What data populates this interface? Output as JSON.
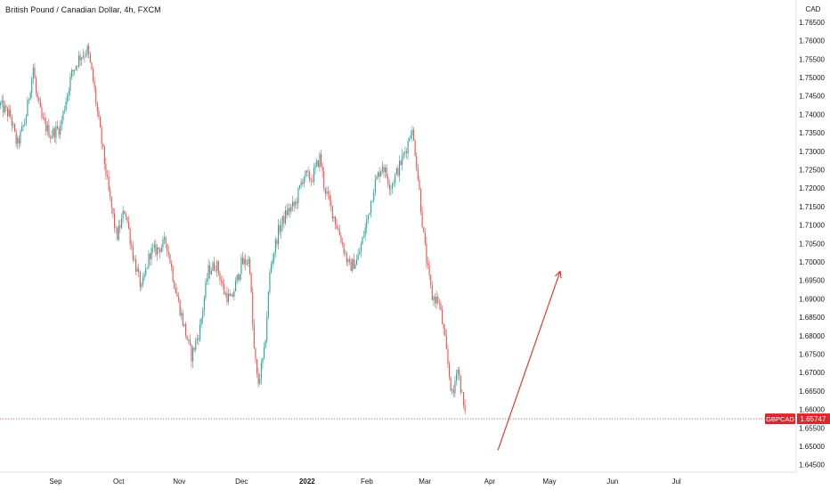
{
  "header": {
    "title": "British Pound / Canadian Dollar, 4h, FXCM"
  },
  "chart_data": {
    "type": "candlestick",
    "symbol": "GBPCAD",
    "currency": "CAD",
    "last_price": "1.65747",
    "ylim": [
      1.643,
      1.771
    ],
    "y_ticks": [
      "1.76500",
      "1.76000",
      "1.75500",
      "1.75000",
      "1.74500",
      "1.74000",
      "1.73500",
      "1.73000",
      "1.72500",
      "1.72000",
      "1.71500",
      "1.71000",
      "1.70500",
      "1.70000",
      "1.69500",
      "1.69000",
      "1.68500",
      "1.68000",
      "1.67500",
      "1.67000",
      "1.66500",
      "1.66000",
      "1.65500",
      "1.65000",
      "1.64500"
    ],
    "y_tick_values": [
      1.765,
      1.76,
      1.755,
      1.75,
      1.745,
      1.74,
      1.735,
      1.73,
      1.725,
      1.72,
      1.715,
      1.71,
      1.705,
      1.7,
      1.695,
      1.69,
      1.685,
      1.68,
      1.675,
      1.67,
      1.665,
      1.66,
      1.655,
      1.65,
      1.645
    ],
    "x_labels": [
      "Sep",
      "Oct",
      "Nov",
      "Dec",
      "2022",
      "Feb",
      "Mar",
      "Apr",
      "May",
      "Jun",
      "Jul"
    ],
    "x_label_positions": [
      0.067,
      0.143,
      0.216,
      0.291,
      0.37,
      0.442,
      0.512,
      0.59,
      0.662,
      0.738,
      0.815
    ],
    "x_label_bold": [
      false,
      false,
      false,
      false,
      true,
      false,
      false,
      false,
      false,
      false,
      false
    ],
    "price_path": [
      [
        0.0,
        1.7425
      ],
      [
        0.012,
        1.7395
      ],
      [
        0.02,
        1.7315
      ],
      [
        0.03,
        1.7385
      ],
      [
        0.04,
        1.7535
      ],
      [
        0.042,
        1.7465
      ],
      [
        0.05,
        1.7385
      ],
      [
        0.06,
        1.7345
      ],
      [
        0.072,
        1.7365
      ],
      [
        0.085,
        1.7505
      ],
      [
        0.095,
        1.7555
      ],
      [
        0.105,
        1.7575
      ],
      [
        0.112,
        1.7485
      ],
      [
        0.118,
        1.7385
      ],
      [
        0.125,
        1.7275
      ],
      [
        0.13,
        1.7195
      ],
      [
        0.14,
        1.7065
      ],
      [
        0.15,
        1.7145
      ],
      [
        0.16,
        1.7015
      ],
      [
        0.17,
        1.6925
      ],
      [
        0.18,
        1.7025
      ],
      [
        0.19,
        1.7035
      ],
      [
        0.2,
        1.7055
      ],
      [
        0.21,
        1.6935
      ],
      [
        0.22,
        1.6835
      ],
      [
        0.23,
        1.6745
      ],
      [
        0.24,
        1.6815
      ],
      [
        0.25,
        1.6975
      ],
      [
        0.26,
        1.6995
      ],
      [
        0.27,
        1.6915
      ],
      [
        0.278,
        1.6895
      ],
      [
        0.29,
        1.6995
      ],
      [
        0.3,
        1.7005
      ],
      [
        0.305,
        1.6775
      ],
      [
        0.31,
        1.6665
      ],
      [
        0.318,
        1.6755
      ],
      [
        0.325,
        1.6985
      ],
      [
        0.335,
        1.7085
      ],
      [
        0.345,
        1.7135
      ],
      [
        0.355,
        1.7155
      ],
      [
        0.365,
        1.7235
      ],
      [
        0.375,
        1.7225
      ],
      [
        0.385,
        1.7285
      ],
      [
        0.39,
        1.7205
      ],
      [
        0.4,
        1.7135
      ],
      [
        0.41,
        1.7065
      ],
      [
        0.42,
        1.6985
      ],
      [
        0.43,
        1.7005
      ],
      [
        0.44,
        1.7095
      ],
      [
        0.45,
        1.7205
      ],
      [
        0.46,
        1.7265
      ],
      [
        0.47,
        1.7205
      ],
      [
        0.48,
        1.7255
      ],
      [
        0.49,
        1.7315
      ],
      [
        0.495,
        1.7365
      ],
      [
        0.5,
        1.7295
      ],
      [
        0.505,
        1.7185
      ],
      [
        0.51,
        1.7065
      ],
      [
        0.515,
        1.6975
      ],
      [
        0.52,
        1.6905
      ],
      [
        0.528,
        1.6895
      ],
      [
        0.535,
        1.6795
      ],
      [
        0.54,
        1.6705
      ],
      [
        0.545,
        1.6625
      ],
      [
        0.55,
        1.6725
      ],
      [
        0.555,
        1.6655
      ],
      [
        0.56,
        1.6575
      ]
    ],
    "annotation_arrow": {
      "from": [
        0.6,
        1.649
      ],
      "to": [
        0.675,
        1.6975
      ],
      "color": "#e53935"
    },
    "colors": {
      "up": "#26a69a",
      "down": "#ef5350",
      "arrow": "#e53935",
      "price_line": "#ef5350",
      "price_badge": "#e0262b"
    }
  }
}
